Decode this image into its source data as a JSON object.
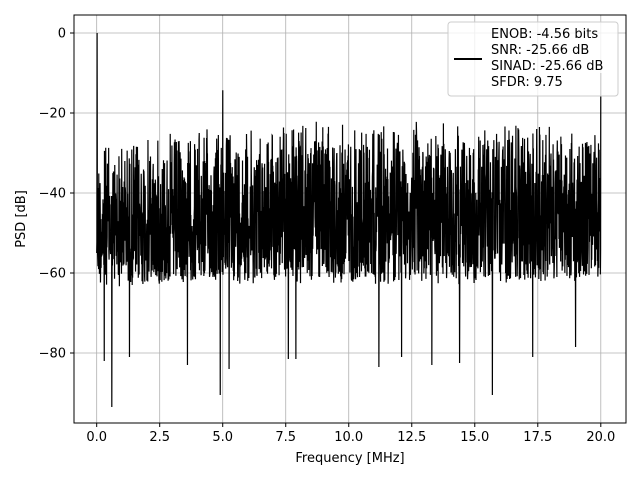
{
  "chart_data": {
    "type": "line",
    "title": "",
    "xlabel": "Frequency [MHz]",
    "ylabel": "PSD [dB]",
    "xlim": [
      -0.9,
      21.0
    ],
    "ylim": [
      -97.5,
      4.5
    ],
    "xticks": [
      0,
      2.5,
      5,
      7.5,
      10,
      12.5,
      15,
      17.5,
      20
    ],
    "xtick_labels": [
      "0.0",
      "2.5",
      "5.0",
      "7.5",
      "10.0",
      "12.5",
      "15.0",
      "17.5",
      "20.0"
    ],
    "yticks": [
      0,
      -20,
      -40,
      -60,
      -80
    ],
    "ytick_labels": [
      "0",
      "−20",
      "−40",
      "−60",
      "−80"
    ],
    "grid": true,
    "legend_position": "top-right",
    "legend": {
      "lines": [
        "ENOB: -4.56 bits",
        "SNR: -25.66 dB",
        "SINAD: -25.66 dB",
        "SFDR: 9.75"
      ]
    },
    "series": [
      {
        "color": "#000000",
        "description_free": true,
        "x_range": [
          0,
          20
        ],
        "upper_envelope": [
          [
            0,
            -27.5
          ],
          [
            2.5,
            -25
          ],
          [
            5,
            -23
          ],
          [
            7.5,
            -22
          ],
          [
            10,
            -22
          ],
          [
            12.5,
            -22
          ],
          [
            15,
            -22.5
          ],
          [
            17.5,
            -23
          ],
          [
            20,
            -24
          ]
        ],
        "lower_envelope": [
          [
            0,
            -63
          ],
          [
            2.5,
            -63
          ],
          [
            5,
            -62
          ],
          [
            7.5,
            -62
          ],
          [
            10,
            -62
          ],
          [
            12.5,
            -62
          ],
          [
            15,
            -62
          ],
          [
            17.5,
            -62
          ],
          [
            20,
            -62
          ]
        ],
        "spikes": [
          {
            "x": 0.02,
            "y": 0.0
          },
          {
            "x": 5.0,
            "y": -14.3
          },
          {
            "x": 20.0,
            "y": -10.0
          }
        ],
        "dips": [
          {
            "x": 0.3,
            "y": -82
          },
          {
            "x": 0.6,
            "y": -93.5
          },
          {
            "x": 1.3,
            "y": -81
          },
          {
            "x": 3.6,
            "y": -83
          },
          {
            "x": 4.9,
            "y": -90.5
          },
          {
            "x": 5.25,
            "y": -84
          },
          {
            "x": 7.6,
            "y": -81.5
          },
          {
            "x": 7.9,
            "y": -81.5
          },
          {
            "x": 11.2,
            "y": -83.5
          },
          {
            "x": 12.1,
            "y": -81
          },
          {
            "x": 13.3,
            "y": -83
          },
          {
            "x": 14.4,
            "y": -82.5
          },
          {
            "x": 15.7,
            "y": -90.5
          },
          {
            "x": 17.3,
            "y": -81
          },
          {
            "x": 19.0,
            "y": -78.5
          }
        ]
      }
    ]
  }
}
